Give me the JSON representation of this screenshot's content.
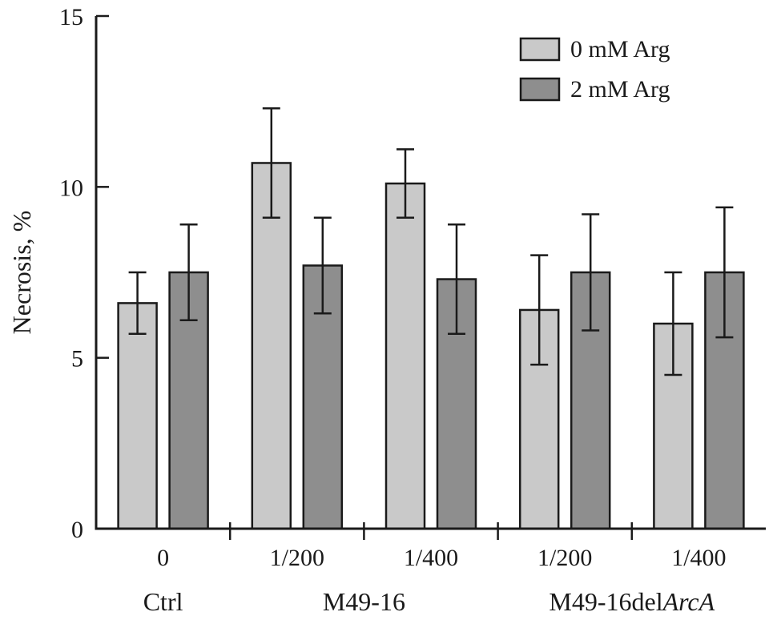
{
  "figure": {
    "background": "#ffffff",
    "axis_color": "#1a1a1a"
  },
  "chart_data": {
    "type": "bar",
    "title": "",
    "xlabel": "",
    "ylabel": "Necrosis, %",
    "ylim": [
      0,
      15
    ],
    "yticks": [
      0,
      5,
      10,
      15
    ],
    "categories": [
      "0",
      "1/200",
      "1/400",
      "1/200",
      "1/400"
    ],
    "group_labels": [
      {
        "text": "Ctrl",
        "italic": "",
        "span": [
          0,
          0
        ]
      },
      {
        "text": "M49-16",
        "italic": "",
        "span": [
          1,
          2
        ]
      },
      {
        "text": "M49-16del",
        "italic": "ArcA",
        "span": [
          3,
          4
        ]
      }
    ],
    "series": [
      {
        "name": "0 mM Arg",
        "color": "#c9c9c9",
        "values": [
          6.6,
          10.7,
          10.1,
          6.4,
          6.0
        ],
        "errors": [
          0.9,
          1.6,
          1.0,
          1.6,
          1.5
        ]
      },
      {
        "name": "2 mM Arg",
        "color": "#8e8e8e",
        "values": [
          7.5,
          7.7,
          7.3,
          7.5,
          7.5
        ],
        "errors": [
          1.4,
          1.4,
          1.6,
          1.7,
          1.9
        ]
      }
    ],
    "legend_position": "top-right",
    "grid": false,
    "bar_outline_color": "#1a1a1a",
    "error_bar_color": "#1a1a1a"
  }
}
